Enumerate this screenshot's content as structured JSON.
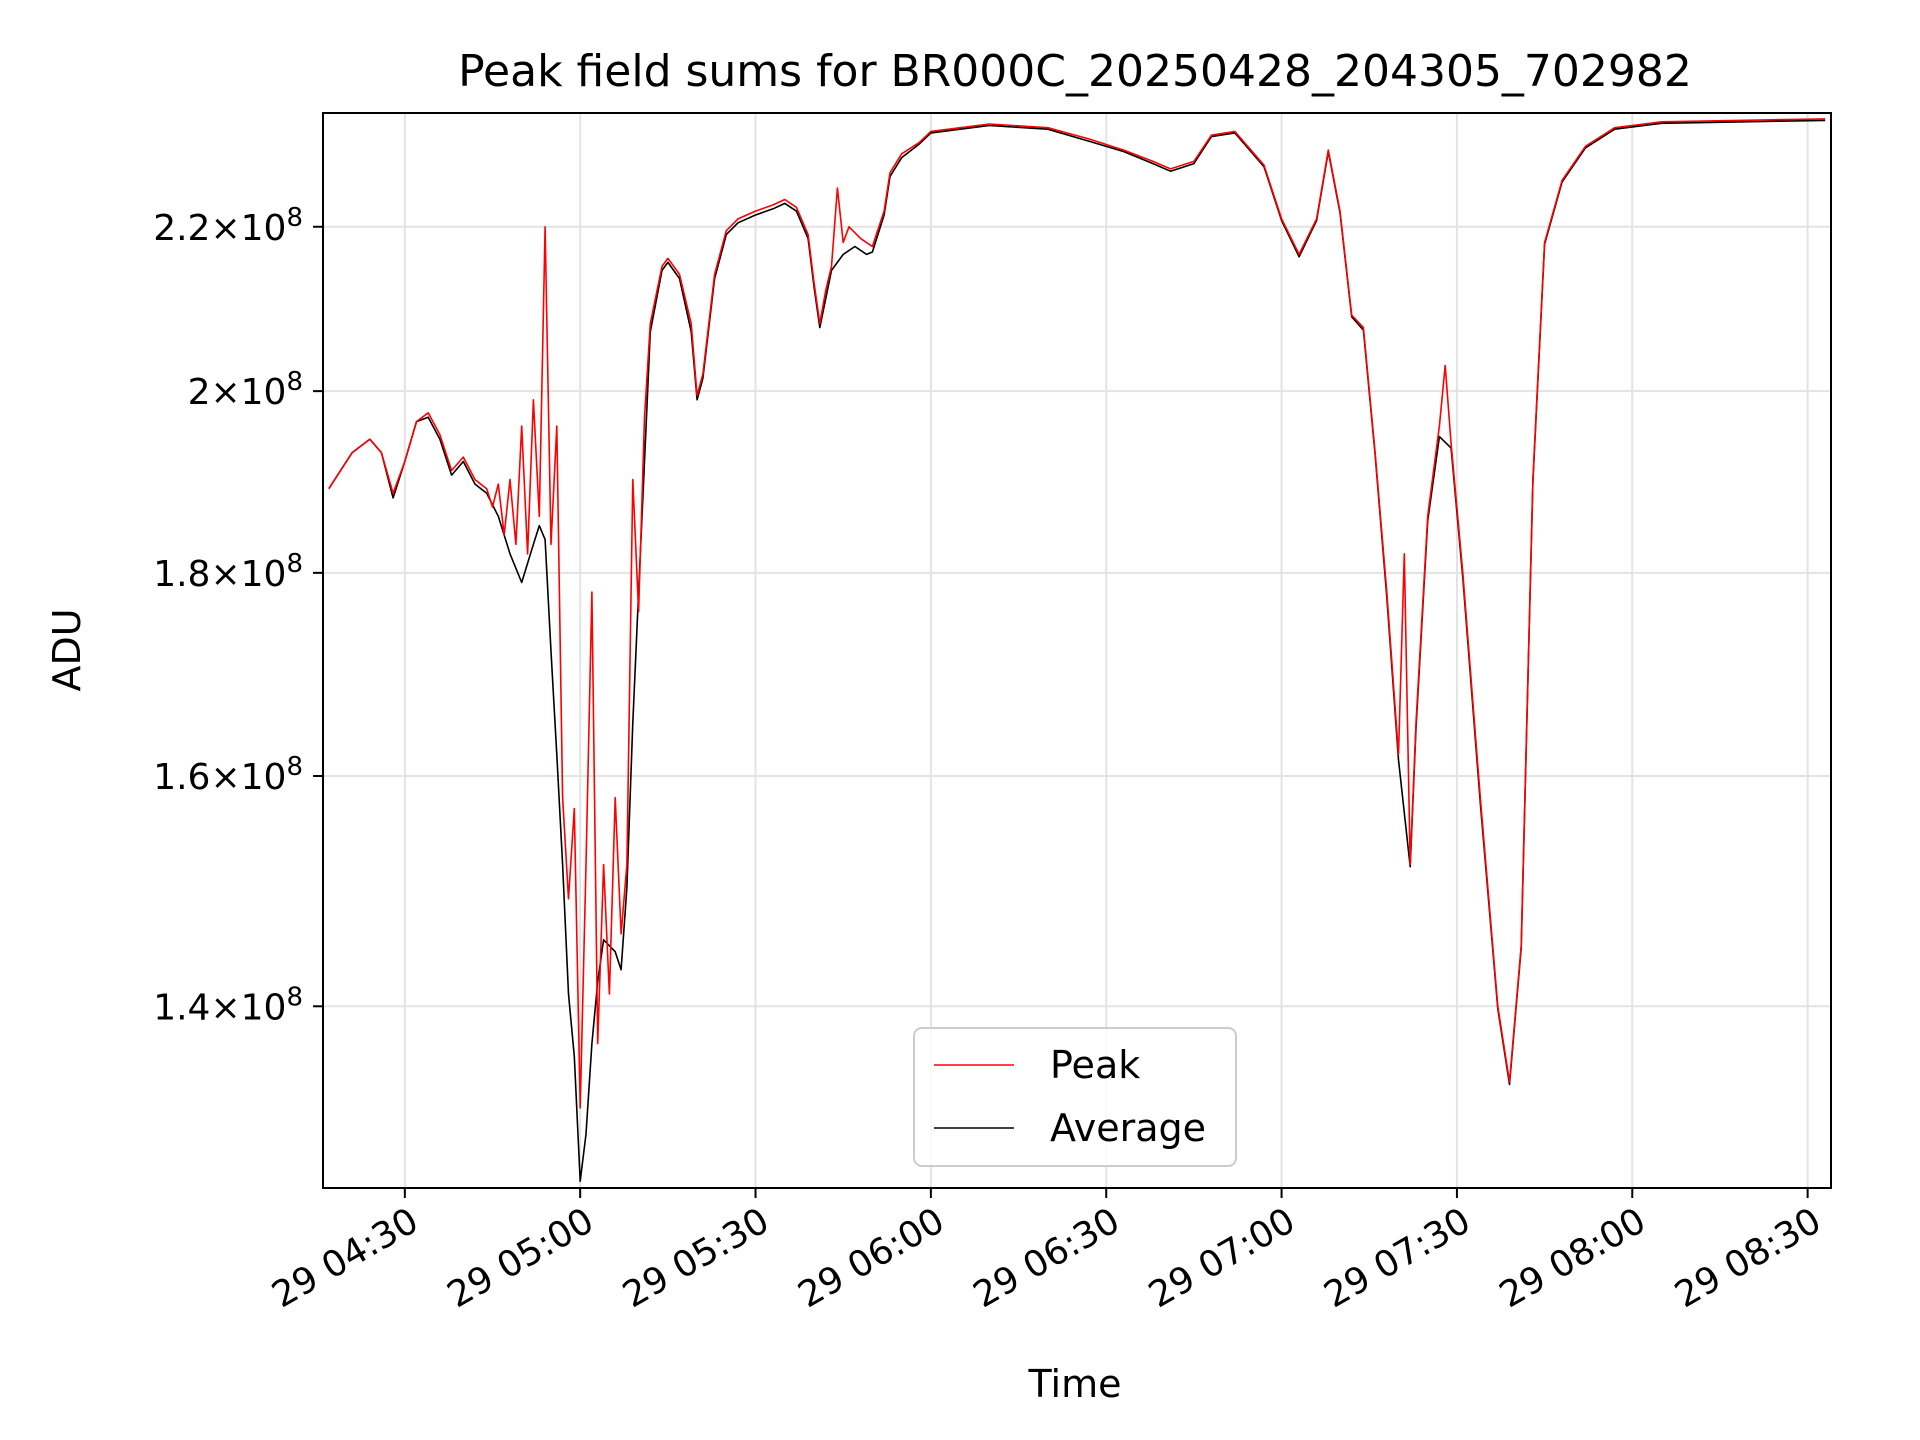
{
  "chart_data": {
    "type": "line",
    "title": "Peak field sums for BR000C_20250428_204305_702982",
    "xlabel": "Time",
    "ylabel": "ADU",
    "x_ticks": [
      "29 04:30",
      "29 05:00",
      "29 05:30",
      "29 06:00",
      "29 06:30",
      "29 07:00",
      "29 07:30",
      "29 08:00",
      "29 08:30"
    ],
    "y_ticks": [
      {
        "value": 140000000,
        "mant": "1.4",
        "exp": "8"
      },
      {
        "value": 160000000,
        "mant": "1.6",
        "exp": "8"
      },
      {
        "value": 180000000,
        "mant": "1.8",
        "exp": "8"
      },
      {
        "value": 200000000,
        "mant": "2",
        "exp": "8"
      },
      {
        "value": 220000000,
        "mant": "2.2",
        "exp": "8"
      }
    ],
    "y_scale": "log",
    "xlim": [
      "2025-04-29 04:16",
      "2025-04-29 08:34"
    ],
    "ylim": [
      126000000,
      235000000
    ],
    "grid": true,
    "legend_position": "lower center",
    "series": [
      {
        "name": "Peak",
        "color": "#ff0000",
        "points": [
          [
            "2025-04-29 04:17",
            189000000
          ],
          [
            "2025-04-29 04:21",
            193000000
          ],
          [
            "2025-04-29 04:24",
            194500000
          ],
          [
            "2025-04-29 04:26",
            193000000
          ],
          [
            "2025-04-29 04:28",
            188500000
          ],
          [
            "2025-04-29 04:30",
            192000000
          ],
          [
            "2025-04-29 04:32",
            196500000
          ],
          [
            "2025-04-29 04:34",
            197500000
          ],
          [
            "2025-04-29 04:36",
            195000000
          ],
          [
            "2025-04-29 04:38",
            191000000
          ],
          [
            "2025-04-29 04:40",
            192500000
          ],
          [
            "2025-04-29 04:42",
            190000000
          ],
          [
            "2025-04-29 04:44",
            189000000
          ],
          [
            "2025-04-29 04:45",
            187000000
          ],
          [
            "2025-04-29 04:46",
            189500000
          ],
          [
            "2025-04-29 04:47",
            184000000
          ],
          [
            "2025-04-29 04:48",
            190000000
          ],
          [
            "2025-04-29 04:49",
            183000000
          ],
          [
            "2025-04-29 04:50",
            196000000
          ],
          [
            "2025-04-29 04:51",
            182000000
          ],
          [
            "2025-04-29 04:52",
            199000000
          ],
          [
            "2025-04-29 04:53",
            186000000
          ],
          [
            "2025-04-29 04:54",
            220000000
          ],
          [
            "2025-04-29 04:55",
            183000000
          ],
          [
            "2025-04-29 04:56",
            196000000
          ],
          [
            "2025-04-29 04:57",
            158000000
          ],
          [
            "2025-04-29 04:58",
            149000000
          ],
          [
            "2025-04-29 04:59",
            157000000
          ],
          [
            "2025-04-29 05:00",
            132000000
          ],
          [
            "2025-04-29 05:01",
            152000000
          ],
          [
            "2025-04-29 05:02",
            178000000
          ],
          [
            "2025-04-29 05:03",
            137000000
          ],
          [
            "2025-04-29 05:04",
            152000000
          ],
          [
            "2025-04-29 05:05",
            141000000
          ],
          [
            "2025-04-29 05:06",
            158000000
          ],
          [
            "2025-04-29 05:07",
            146000000
          ],
          [
            "2025-04-29 05:08",
            152000000
          ],
          [
            "2025-04-29 05:09",
            190000000
          ],
          [
            "2025-04-29 05:10",
            176000000
          ],
          [
            "2025-04-29 05:11",
            197000000
          ],
          [
            "2025-04-29 05:12",
            208000000
          ],
          [
            "2025-04-29 05:14",
            215000000
          ],
          [
            "2025-04-29 05:15",
            216000000
          ],
          [
            "2025-04-29 05:17",
            214000000
          ],
          [
            "2025-04-29 05:19",
            208000000
          ],
          [
            "2025-04-29 05:20",
            199500000
          ],
          [
            "2025-04-29 05:21",
            202000000
          ],
          [
            "2025-04-29 05:23",
            214000000
          ],
          [
            "2025-04-29 05:25",
            219500000
          ],
          [
            "2025-04-29 05:27",
            221000000
          ],
          [
            "2025-04-29 05:30",
            222000000
          ],
          [
            "2025-04-29 05:33",
            222800000
          ],
          [
            "2025-04-29 05:35",
            223500000
          ],
          [
            "2025-04-29 05:37",
            222500000
          ],
          [
            "2025-04-29 05:39",
            219000000
          ],
          [
            "2025-04-29 05:40",
            213000000
          ],
          [
            "2025-04-29 05:41",
            208000000
          ],
          [
            "2025-04-29 05:42",
            212000000
          ],
          [
            "2025-04-29 05:43",
            215000000
          ],
          [
            "2025-04-29 05:44",
            225000000
          ],
          [
            "2025-04-29 05:45",
            218000000
          ],
          [
            "2025-04-29 05:46",
            220000000
          ],
          [
            "2025-04-29 05:48",
            218500000
          ],
          [
            "2025-04-29 05:50",
            217500000
          ],
          [
            "2025-04-29 05:52",
            222000000
          ],
          [
            "2025-04-29 05:53",
            227000000
          ],
          [
            "2025-04-29 05:55",
            229500000
          ],
          [
            "2025-04-29 05:58",
            231000000
          ],
          [
            "2025-04-29 06:00",
            232500000
          ],
          [
            "2025-04-29 06:10",
            233500000
          ],
          [
            "2025-04-29 06:20",
            233000000
          ],
          [
            "2025-04-29 06:27",
            231500000
          ],
          [
            "2025-04-29 06:33",
            230000000
          ],
          [
            "2025-04-29 06:38",
            228500000
          ],
          [
            "2025-04-29 06:41",
            227500000
          ],
          [
            "2025-04-29 06:45",
            228500000
          ],
          [
            "2025-04-29 06:48",
            232000000
          ],
          [
            "2025-04-29 06:52",
            232500000
          ],
          [
            "2025-04-29 06:57",
            228000000
          ],
          [
            "2025-04-29 07:00",
            221000000
          ],
          [
            "2025-04-29 07:03",
            216500000
          ],
          [
            "2025-04-29 07:06",
            221000000
          ],
          [
            "2025-04-29 07:08",
            230000000
          ],
          [
            "2025-04-29 07:10",
            222000000
          ],
          [
            "2025-04-29 07:12",
            209000000
          ],
          [
            "2025-04-29 07:14",
            207500000
          ],
          [
            "2025-04-29 07:16",
            193000000
          ],
          [
            "2025-04-29 07:18",
            178000000
          ],
          [
            "2025-04-29 07:20",
            162000000
          ],
          [
            "2025-04-29 07:21",
            182000000
          ],
          [
            "2025-04-29 07:22",
            152000000
          ],
          [
            "2025-04-29 07:23",
            165000000
          ],
          [
            "2025-04-29 07:25",
            186000000
          ],
          [
            "2025-04-29 07:27",
            196000000
          ],
          [
            "2025-04-29 07:28",
            203000000
          ],
          [
            "2025-04-29 07:29",
            194000000
          ],
          [
            "2025-04-29 07:31",
            180000000
          ],
          [
            "2025-04-29 07:34",
            158000000
          ],
          [
            "2025-04-29 07:37",
            140000000
          ],
          [
            "2025-04-29 07:39",
            134000000
          ],
          [
            "2025-04-29 07:41",
            145000000
          ],
          [
            "2025-04-29 07:43",
            190000000
          ],
          [
            "2025-04-29 07:45",
            218000000
          ],
          [
            "2025-04-29 07:48",
            226000000
          ],
          [
            "2025-04-29 07:52",
            230500000
          ],
          [
            "2025-04-29 07:57",
            233000000
          ],
          [
            "2025-04-29 08:05",
            233800000
          ],
          [
            "2025-04-29 08:33",
            234200000
          ]
        ]
      },
      {
        "name": "Average",
        "color": "#000000",
        "points": [
          [
            "2025-04-29 04:17",
            189000000
          ],
          [
            "2025-04-29 04:21",
            193000000
          ],
          [
            "2025-04-29 04:24",
            194500000
          ],
          [
            "2025-04-29 04:26",
            193000000
          ],
          [
            "2025-04-29 04:28",
            188000000
          ],
          [
            "2025-04-29 04:30",
            192000000
          ],
          [
            "2025-04-29 04:32",
            196500000
          ],
          [
            "2025-04-29 04:34",
            197000000
          ],
          [
            "2025-04-29 04:36",
            194500000
          ],
          [
            "2025-04-29 04:38",
            190500000
          ],
          [
            "2025-04-29 04:40",
            192000000
          ],
          [
            "2025-04-29 04:42",
            189500000
          ],
          [
            "2025-04-29 04:44",
            188500000
          ],
          [
            "2025-04-29 04:46",
            186000000
          ],
          [
            "2025-04-29 04:48",
            182000000
          ],
          [
            "2025-04-29 04:50",
            179000000
          ],
          [
            "2025-04-29 04:52",
            183000000
          ],
          [
            "2025-04-29 04:53",
            185000000
          ],
          [
            "2025-04-29 04:54",
            183500000
          ],
          [
            "2025-04-29 04:55",
            172000000
          ],
          [
            "2025-04-29 04:56",
            162000000
          ],
          [
            "2025-04-29 04:57",
            152000000
          ],
          [
            "2025-04-29 04:58",
            141000000
          ],
          [
            "2025-04-29 04:59",
            136000000
          ],
          [
            "2025-04-29 05:00",
            126500000
          ],
          [
            "2025-04-29 05:01",
            130000000
          ],
          [
            "2025-04-29 05:02",
            137000000
          ],
          [
            "2025-04-29 05:03",
            142000000
          ],
          [
            "2025-04-29 05:04",
            145500000
          ],
          [
            "2025-04-29 05:06",
            144500000
          ],
          [
            "2025-04-29 05:07",
            143000000
          ],
          [
            "2025-04-29 05:08",
            150000000
          ],
          [
            "2025-04-29 05:09",
            165000000
          ],
          [
            "2025-04-29 05:10",
            178000000
          ],
          [
            "2025-04-29 05:11",
            192000000
          ],
          [
            "2025-04-29 05:12",
            207000000
          ],
          [
            "2025-04-29 05:14",
            214500000
          ],
          [
            "2025-04-29 05:15",
            215500000
          ],
          [
            "2025-04-29 05:17",
            213500000
          ],
          [
            "2025-04-29 05:19",
            207000000
          ],
          [
            "2025-04-29 05:20",
            199000000
          ],
          [
            "2025-04-29 05:21",
            201500000
          ],
          [
            "2025-04-29 05:23",
            213500000
          ],
          [
            "2025-04-29 05:25",
            219000000
          ],
          [
            "2025-04-29 05:27",
            220500000
          ],
          [
            "2025-04-29 05:30",
            221500000
          ],
          [
            "2025-04-29 05:33",
            222300000
          ],
          [
            "2025-04-29 05:35",
            223000000
          ],
          [
            "2025-04-29 05:37",
            222000000
          ],
          [
            "2025-04-29 05:39",
            218500000
          ],
          [
            "2025-04-29 05:40",
            212500000
          ],
          [
            "2025-04-29 05:41",
            207500000
          ],
          [
            "2025-04-29 05:42",
            211000000
          ],
          [
            "2025-04-29 05:43",
            214500000
          ],
          [
            "2025-04-29 05:45",
            216500000
          ],
          [
            "2025-04-29 05:47",
            217500000
          ],
          [
            "2025-04-29 05:49",
            216500000
          ],
          [
            "2025-04-29 05:50",
            216800000
          ],
          [
            "2025-04-29 05:52",
            221500000
          ],
          [
            "2025-04-29 05:53",
            226500000
          ],
          [
            "2025-04-29 05:55",
            229000000
          ],
          [
            "2025-04-29 05:58",
            230800000
          ],
          [
            "2025-04-29 06:00",
            232300000
          ],
          [
            "2025-04-29 06:10",
            233300000
          ],
          [
            "2025-04-29 06:20",
            232800000
          ],
          [
            "2025-04-29 06:27",
            231200000
          ],
          [
            "2025-04-29 06:33",
            229800000
          ],
          [
            "2025-04-29 06:38",
            228200000
          ],
          [
            "2025-04-29 06:41",
            227200000
          ],
          [
            "2025-04-29 06:45",
            228200000
          ],
          [
            "2025-04-29 06:48",
            231800000
          ],
          [
            "2025-04-29 06:52",
            232300000
          ],
          [
            "2025-04-29 06:57",
            227800000
          ],
          [
            "2025-04-29 07:00",
            220800000
          ],
          [
            "2025-04-29 07:03",
            216200000
          ],
          [
            "2025-04-29 07:06",
            220800000
          ],
          [
            "2025-04-29 07:08",
            229800000
          ],
          [
            "2025-04-29 07:10",
            221800000
          ],
          [
            "2025-04-29 07:12",
            208800000
          ],
          [
            "2025-04-29 07:14",
            207200000
          ],
          [
            "2025-04-29 07:16",
            192800000
          ],
          [
            "2025-04-29 07:18",
            177500000
          ],
          [
            "2025-04-29 07:20",
            161500000
          ],
          [
            "2025-04-29 07:22",
            151800000
          ],
          [
            "2025-04-29 07:23",
            164500000
          ],
          [
            "2025-04-29 07:25",
            185500000
          ],
          [
            "2025-04-29 07:27",
            194800000
          ],
          [
            "2025-04-29 07:29",
            193500000
          ],
          [
            "2025-04-29 07:31",
            179500000
          ],
          [
            "2025-04-29 07:34",
            157500000
          ],
          [
            "2025-04-29 07:37",
            139800000
          ],
          [
            "2025-04-29 07:39",
            133800000
          ],
          [
            "2025-04-29 07:41",
            144800000
          ],
          [
            "2025-04-29 07:43",
            189800000
          ],
          [
            "2025-04-29 07:45",
            217800000
          ],
          [
            "2025-04-29 07:48",
            225800000
          ],
          [
            "2025-04-29 07:52",
            230300000
          ],
          [
            "2025-04-29 07:57",
            232800000
          ],
          [
            "2025-04-29 08:05",
            233600000
          ],
          [
            "2025-04-29 08:33",
            234000000
          ]
        ]
      }
    ]
  }
}
